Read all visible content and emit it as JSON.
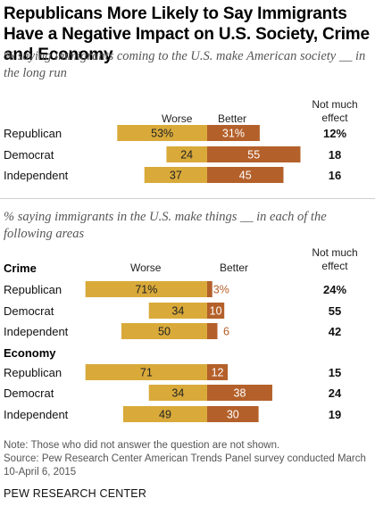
{
  "title": "Republicans More Likely to Say Immigrants Have a Negative Impact on U.S. Society, Crime and Economy",
  "footer": {
    "note": "Note: Those who did not answer the question are not shown.",
    "source": "Source: Pew Research Center American Trends Panel survey conducted March 10-April 6, 2015",
    "brand": "PEW RESEARCH CENTER"
  },
  "colors": {
    "worse": "#d9aa3a",
    "better": "#b4602a",
    "text_on_bar": "#222222",
    "small_label": "#b4602a"
  },
  "chart_data": [
    {
      "type": "bar",
      "subtitle": "% saying immigrants coming to the U.S. make American society __ in the long run",
      "columns": {
        "worse": "Worse",
        "better": "Better",
        "effect": "Not much effect"
      },
      "categories": [
        "Republican",
        "Democrat",
        "Independent"
      ],
      "series": [
        {
          "name": "Worse",
          "values": [
            53,
            24,
            37
          ],
          "labels": [
            "53%",
            "24",
            "37"
          ]
        },
        {
          "name": "Better",
          "values": [
            31,
            55,
            45
          ],
          "labels": [
            "31%",
            "55",
            "45"
          ]
        },
        {
          "name": "Not much effect",
          "values": [
            12,
            18,
            16
          ],
          "labels": [
            "12%",
            "18",
            "16"
          ]
        }
      ]
    },
    {
      "type": "bar",
      "subtitle": "% saying immigrants in the U.S. make things __ in each of the following areas",
      "columns": {
        "worse": "Worse",
        "better": "Better",
        "effect": "Not much effect"
      },
      "groups": [
        {
          "label": "Crime",
          "categories": [
            "Republican",
            "Democrat",
            "Independent"
          ],
          "series": [
            {
              "name": "Worse",
              "values": [
                71,
                34,
                50
              ],
              "labels": [
                "71%",
                "34",
                "50"
              ]
            },
            {
              "name": "Better",
              "values": [
                3,
                10,
                6
              ],
              "labels": [
                "3%",
                "10",
                "6"
              ]
            },
            {
              "name": "Not much effect",
              "values": [
                24,
                55,
                42
              ],
              "labels": [
                "24%",
                "55",
                "42"
              ]
            }
          ]
        },
        {
          "label": "Economy",
          "categories": [
            "Republican",
            "Democrat",
            "Independent"
          ],
          "series": [
            {
              "name": "Worse",
              "values": [
                71,
                34,
                49
              ],
              "labels": [
                "71",
                "34",
                "49"
              ]
            },
            {
              "name": "Better",
              "values": [
                12,
                38,
                30
              ],
              "labels": [
                "12",
                "38",
                "30"
              ]
            },
            {
              "name": "Not much effect",
              "values": [
                15,
                24,
                19
              ],
              "labels": [
                "15",
                "24",
                "19"
              ]
            }
          ]
        }
      ]
    }
  ]
}
